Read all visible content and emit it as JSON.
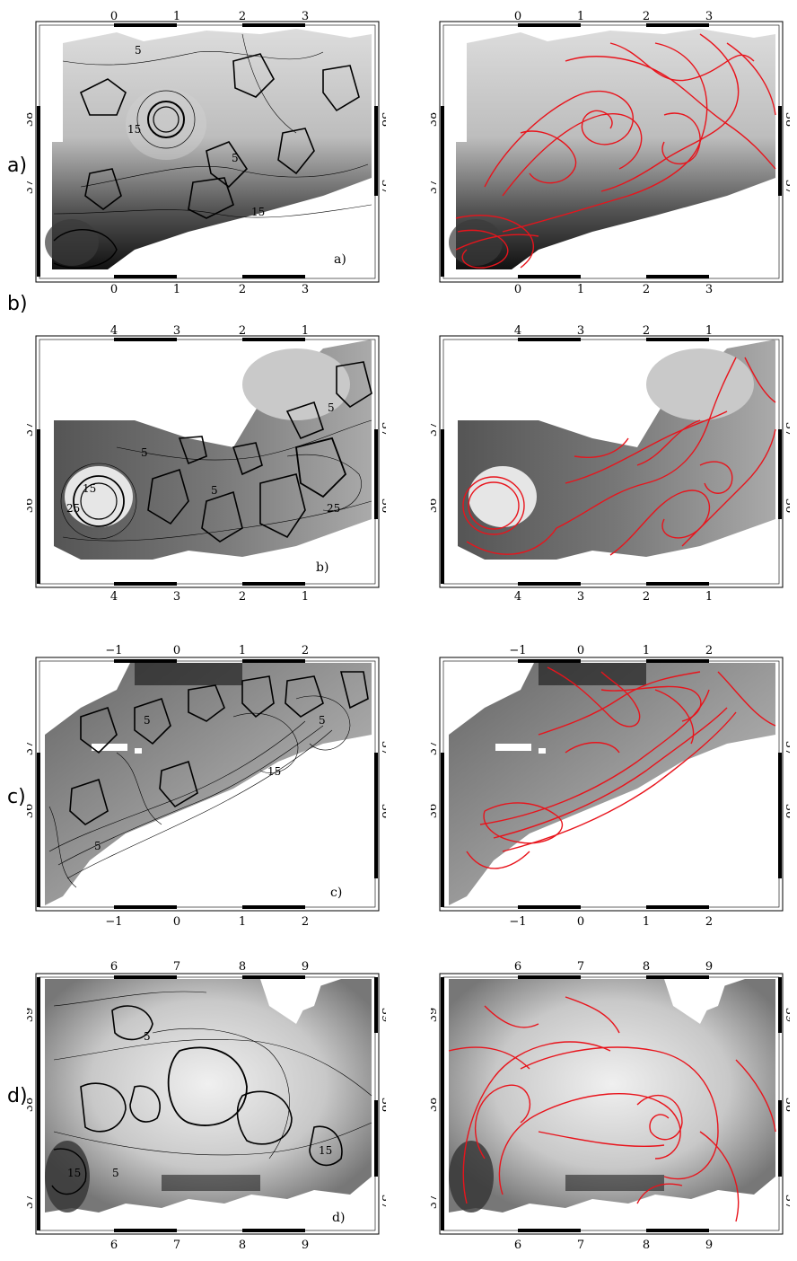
{
  "panels": [
    {
      "row_label": "a)",
      "inner_label": "a)",
      "top_ticks": [
        "0",
        "1",
        "2",
        "3"
      ],
      "bottom_ticks": [
        "0",
        "1",
        "2",
        "3"
      ],
      "left_ticks": [
        "38",
        "37"
      ],
      "right_ticks": [
        "38",
        "37"
      ],
      "contour_labels": [
        "5",
        "15",
        "5",
        "15"
      ]
    },
    {
      "row_label": "b)",
      "inner_label": "b)",
      "top_ticks": [
        "4",
        "3",
        "2",
        "1"
      ],
      "bottom_ticks": [
        "4",
        "3",
        "2",
        "1"
      ],
      "left_ticks": [
        "37",
        "36"
      ],
      "right_ticks": [
        "37",
        "36"
      ],
      "contour_labels": [
        "5",
        "15",
        "25",
        "5",
        "25",
        "5"
      ]
    },
    {
      "row_label": "c)",
      "inner_label": "c)",
      "top_ticks": [
        "−1",
        "0",
        "1",
        "2"
      ],
      "bottom_ticks": [
        "−1",
        "0",
        "1",
        "2"
      ],
      "left_ticks": [
        "37",
        "36"
      ],
      "right_ticks": [
        "37",
        "36"
      ],
      "contour_labels": [
        "5",
        "15",
        "5",
        "5"
      ]
    },
    {
      "row_label": "d)",
      "inner_label": "d)",
      "top_ticks": [
        "6",
        "7",
        "8",
        "9"
      ],
      "bottom_ticks": [
        "6",
        "7",
        "8",
        "9"
      ],
      "left_ticks": [
        "39",
        "38",
        "37"
      ],
      "right_ticks": [
        "39",
        "38",
        "37"
      ],
      "contour_labels": [
        "5",
        "5",
        "15",
        "15"
      ]
    }
  ],
  "colors": {
    "contour": "#000000",
    "lagrangian_lines": "#e8141c",
    "land": "#ffffff"
  }
}
